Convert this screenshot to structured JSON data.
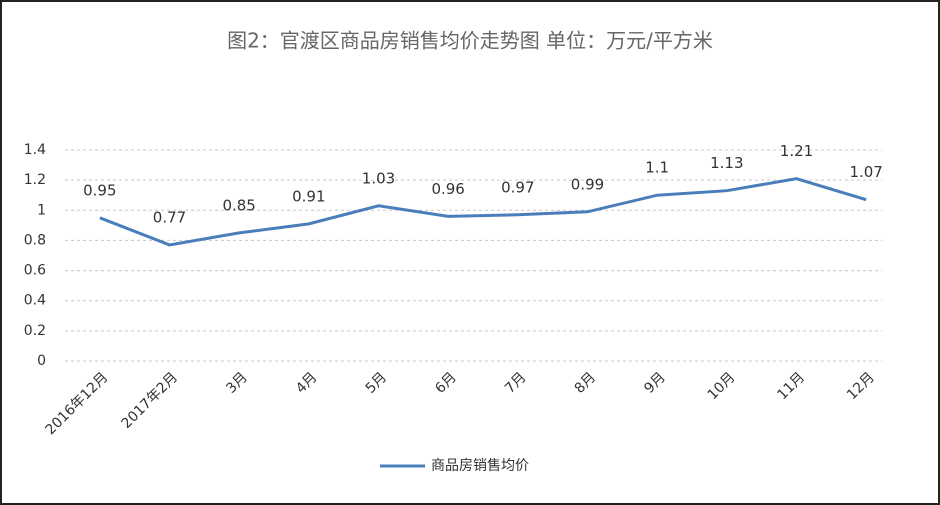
{
  "chart_data": {
    "type": "line",
    "title": "图2：官渡区商品房销售均价走势图 单位：万元/平方米",
    "categories": [
      "2016年12月",
      "2017年2月",
      "3月",
      "4月",
      "5月",
      "6月",
      "7月",
      "8月",
      "9月",
      "10月",
      "11月",
      "12月"
    ],
    "series": [
      {
        "name": "商品房销售均价",
        "color": "#4a7ebb",
        "values": [
          0.95,
          0.77,
          0.85,
          0.91,
          1.03,
          0.96,
          0.97,
          0.99,
          1.1,
          1.13,
          1.21,
          1.07
        ]
      }
    ],
    "ylim": [
      0,
      1.4
    ],
    "yticks": [
      0,
      0.2,
      0.4,
      0.6,
      0.8,
      1,
      1.2,
      1.4
    ],
    "grid": true,
    "legend": "bottom",
    "data_labels": true
  }
}
